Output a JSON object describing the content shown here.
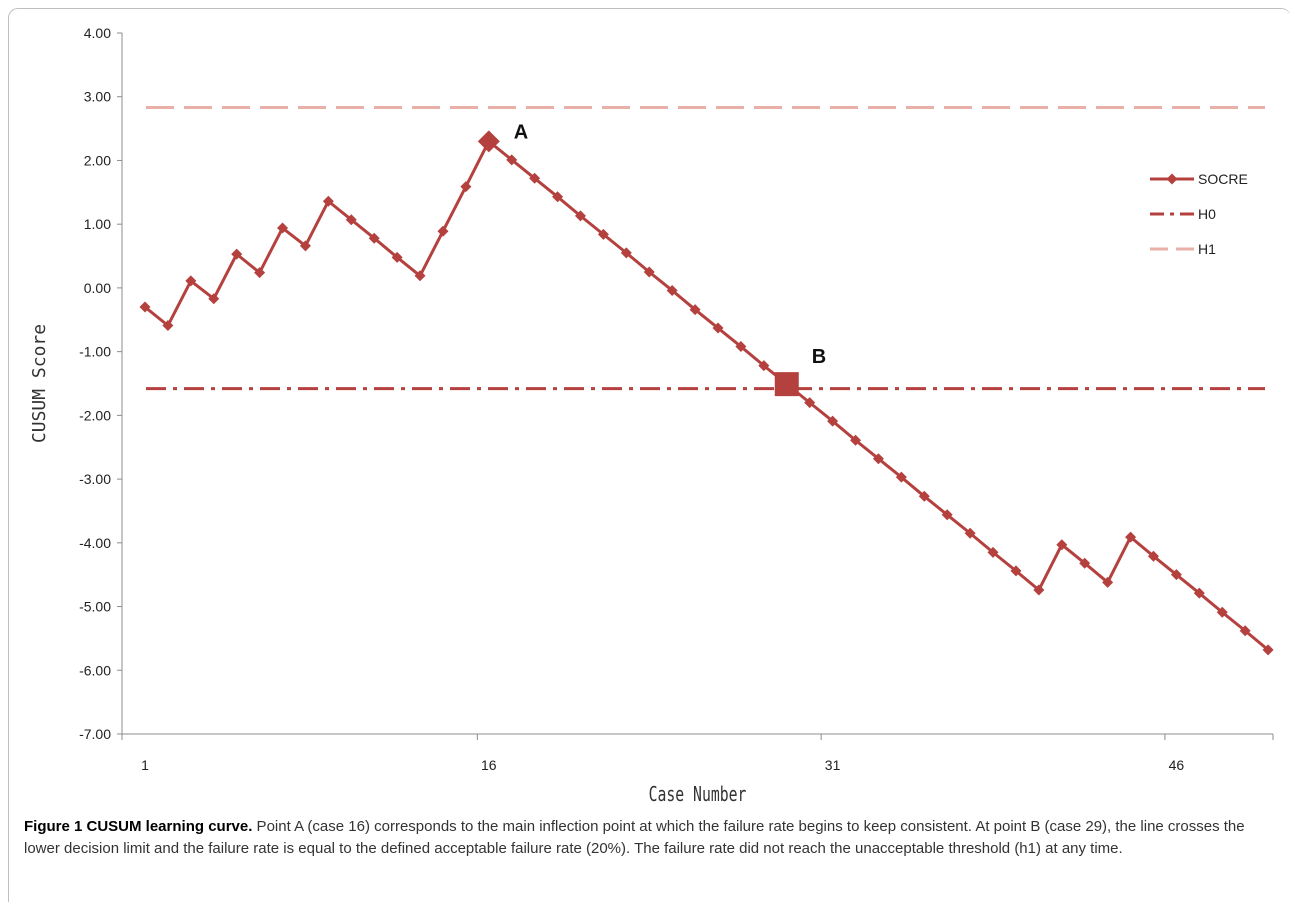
{
  "chart_data": {
    "type": "line",
    "xlabel": "Case Number",
    "ylabel": "CUSUM Score",
    "xlim": [
      1,
      50
    ],
    "ylim": [
      -7,
      4
    ],
    "x_ticks": [
      1,
      16,
      31,
      46
    ],
    "y_ticks": [
      "4.00",
      "3.00",
      "2.00",
      "1.00",
      "0.00",
      "-1.00",
      "-2.00",
      "-3.00",
      "-4.00",
      "-5.00",
      "-6.00",
      "-7.00"
    ],
    "grid": false,
    "legend_position": "right",
    "series": [
      {
        "name": "SOCRE",
        "color": "#b5413f",
        "style": "line-with-diamond-markers",
        "x": [
          1,
          2,
          3,
          4,
          5,
          6,
          7,
          8,
          9,
          10,
          11,
          12,
          13,
          14,
          15,
          16,
          17,
          18,
          19,
          20,
          21,
          22,
          23,
          24,
          25,
          26,
          27,
          28,
          29,
          30,
          31,
          32,
          33,
          34,
          35,
          36,
          37,
          38,
          39,
          40,
          41,
          42,
          43,
          44,
          45,
          46,
          47,
          48,
          49,
          50
        ],
        "y": [
          -0.3,
          -0.59,
          0.11,
          -0.17,
          0.53,
          0.24,
          0.94,
          0.66,
          1.36,
          1.07,
          0.78,
          0.48,
          0.19,
          0.89,
          1.59,
          2.3,
          2.01,
          1.72,
          1.43,
          1.13,
          0.84,
          0.55,
          0.25,
          -0.04,
          -0.34,
          -0.63,
          -0.92,
          -1.22,
          -1.51,
          -1.8,
          -2.09,
          -2.39,
          -2.68,
          -2.97,
          -3.27,
          -3.56,
          -3.85,
          -4.15,
          -4.44,
          -4.74,
          -4.03,
          -4.32,
          -4.62,
          -3.91,
          -4.21,
          -4.5,
          -4.79,
          -5.09,
          -5.38,
          -5.68
        ]
      },
      {
        "name": "H0",
        "color": "#b5413f",
        "style": "dash-dot",
        "y": -1.58
      },
      {
        "name": "H1",
        "color": "#e8b0a8",
        "style": "long-dash",
        "y": 2.83
      }
    ],
    "annotations": [
      {
        "label": "A",
        "x": 16,
        "y": 2.3,
        "marker": "large-diamond"
      },
      {
        "label": "B",
        "x": 29,
        "y": -1.51,
        "marker": "large-square"
      }
    ]
  },
  "caption": {
    "title": "Figure 1 CUSUM learning curve.",
    "text": " Point A (case 16) corresponds to the main inflection point at which the failure rate begins to keep consistent. At point B (case 29), the line crosses the lower decision limit and the failure rate is equal to the defined acceptable failure rate (20%). The failure rate did not reach the unacceptable threshold (h1) at any time."
  }
}
